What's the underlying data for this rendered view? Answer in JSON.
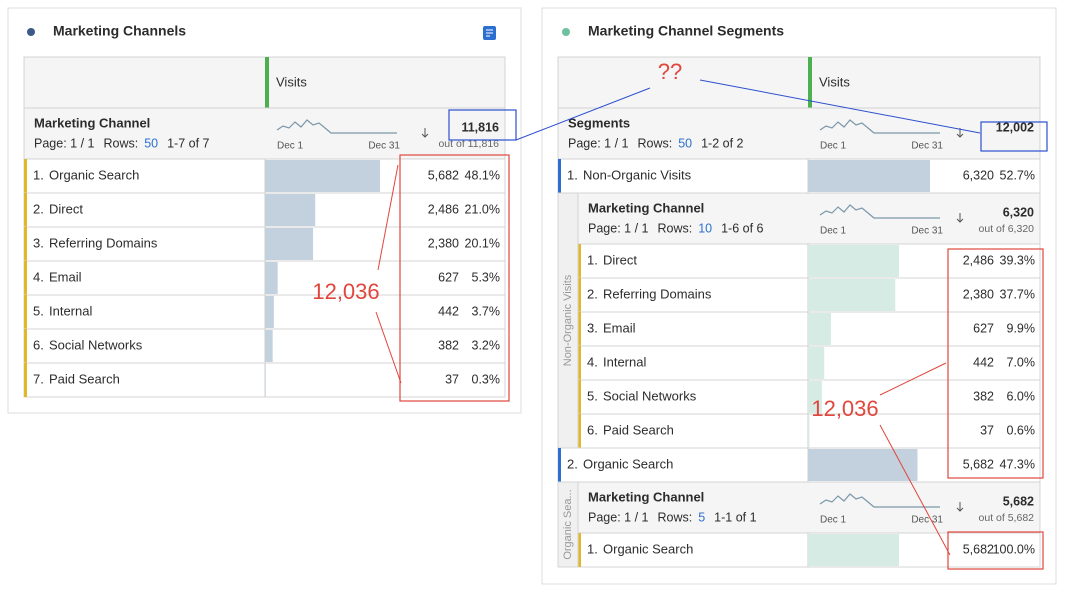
{
  "left_panel": {
    "title": "Marketing Channels",
    "table": {
      "column_header": "Visits",
      "dimension": "Marketing Channel",
      "page": "Page: 1 / 1",
      "rows_label": "Rows:",
      "rows_per_page": 50,
      "range": "1-7 of 7",
      "sparkline_start": "Dec 1",
      "sparkline_end": "Dec 31",
      "total": "11,816",
      "total_of": "out of 11,816",
      "rows": [
        {
          "index": "1.",
          "name": "Organic Search",
          "visits": {
            "value": 5682,
            "label": "5,682"
          },
          "percent": {
            "value": 48.1,
            "label": "48.1%"
          }
        },
        {
          "index": "2.",
          "name": "Direct",
          "visits": {
            "value": 2486,
            "label": "2,486"
          },
          "percent": {
            "value": 21.0,
            "label": "21.0%"
          }
        },
        {
          "index": "3.",
          "name": "Referring Domains",
          "visits": {
            "value": 2380,
            "label": "2,380"
          },
          "percent": {
            "value": 20.1,
            "label": "20.1%"
          }
        },
        {
          "index": "4.",
          "name": "Email",
          "visits": {
            "value": 627,
            "label": "627"
          },
          "percent": {
            "value": 5.3,
            "label": "5.3%"
          }
        },
        {
          "index": "5.",
          "name": "Internal",
          "visits": {
            "value": 442,
            "label": "442"
          },
          "percent": {
            "value": 3.7,
            "label": "3.7%"
          }
        },
        {
          "index": "6.",
          "name": "Social Networks",
          "visits": {
            "value": 382,
            "label": "382"
          },
          "percent": {
            "value": 3.2,
            "label": "3.2%"
          }
        },
        {
          "index": "7.",
          "name": "Paid Search",
          "visits": {
            "value": 37,
            "label": "37"
          },
          "percent": {
            "value": 0.3,
            "label": "0.3%"
          }
        }
      ]
    }
  },
  "right_panel": {
    "title": "Marketing Channel Segments",
    "table": {
      "column_header": "Visits",
      "dimension": "Segments",
      "page": "Page: 1 / 1",
      "rows_label": "Rows:",
      "rows_per_page": 50,
      "range": "1-2 of 2",
      "sparkline_start": "Dec 1",
      "sparkline_end": "Dec 31",
      "total": "12,002",
      "segments": [
        {
          "index": "1.",
          "name": "Non-Organic Visits",
          "visits": {
            "value": 6320,
            "label": "6,320"
          },
          "percent": {
            "value": 52.7,
            "label": "52.7%"
          },
          "side_label": "Non-Organic Visits",
          "breakdown": {
            "dimension": "Marketing Channel",
            "page": "Page: 1 / 1",
            "rows_label": "Rows:",
            "rows_per_page": 10,
            "range": "1-6 of 6",
            "sparkline_start": "Dec 1",
            "sparkline_end": "Dec 31",
            "total": "6,320",
            "total_of": "out of 6,320",
            "rows": [
              {
                "index": "1.",
                "name": "Direct",
                "visits": {
                  "value": 2486,
                  "label": "2,486"
                },
                "percent": {
                  "value": 39.3,
                  "label": "39.3%"
                }
              },
              {
                "index": "2.",
                "name": "Referring Domains",
                "visits": {
                  "value": 2380,
                  "label": "2,380"
                },
                "percent": {
                  "value": 37.7,
                  "label": "37.7%"
                }
              },
              {
                "index": "3.",
                "name": "Email",
                "visits": {
                  "value": 627,
                  "label": "627"
                },
                "percent": {
                  "value": 9.9,
                  "label": "9.9%"
                }
              },
              {
                "index": "4.",
                "name": "Internal",
                "visits": {
                  "value": 442,
                  "label": "442"
                },
                "percent": {
                  "value": 7.0,
                  "label": "7.0%"
                }
              },
              {
                "index": "5.",
                "name": "Social Networks",
                "visits": {
                  "value": 382,
                  "label": "382"
                },
                "percent": {
                  "value": 6.0,
                  "label": "6.0%"
                }
              },
              {
                "index": "6.",
                "name": "Paid Search",
                "visits": {
                  "value": 37,
                  "label": "37"
                },
                "percent": {
                  "value": 0.6,
                  "label": "0.6%"
                }
              }
            ]
          }
        },
        {
          "index": "2.",
          "name": "Organic Search",
          "visits": {
            "value": 5682,
            "label": "5,682"
          },
          "percent": {
            "value": 47.3,
            "label": "47.3%"
          },
          "side_label": "Organic Sea...",
          "breakdown": {
            "dimension": "Marketing Channel",
            "page": "Page: 1 / 1",
            "rows_label": "Rows:",
            "rows_per_page": 5,
            "range": "1-1 of 1",
            "sparkline_start": "Dec 1",
            "sparkline_end": "Dec 31",
            "total": "5,682",
            "total_of": "out of 5,682",
            "rows": [
              {
                "index": "1.",
                "name": "Organic Search",
                "visits": {
                  "value": 5682,
                  "label": "5,682"
                },
                "percent": {
                  "value": 100.0,
                  "label": "100.0%"
                }
              }
            ]
          }
        }
      ]
    }
  },
  "annotations": {
    "left_sum": "12,036",
    "question": "??",
    "right_sum": "12,036"
  }
}
